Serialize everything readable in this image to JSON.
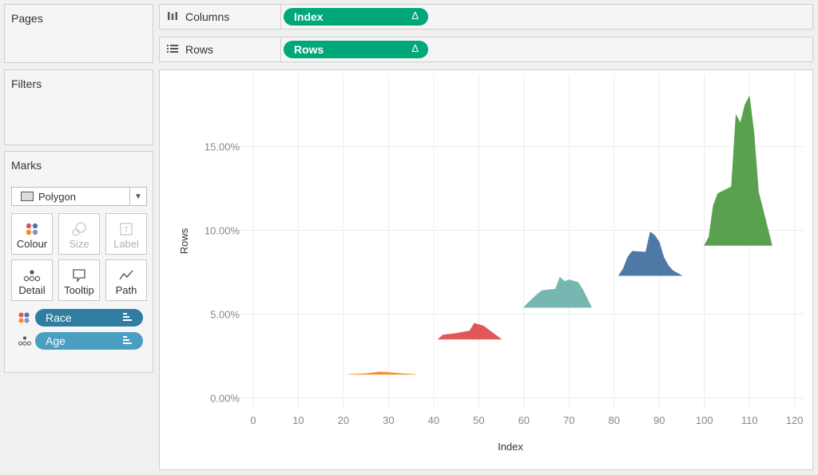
{
  "cards": {
    "pages_title": "Pages",
    "filters_title": "Filters",
    "marks_title": "Marks"
  },
  "shelves": {
    "columns": {
      "label": "Columns",
      "pill": "Index",
      "pill_icon": "delta-icon"
    },
    "rows": {
      "label": "Rows",
      "pill": "Rows",
      "pill_icon": "delta-icon"
    }
  },
  "marks": {
    "mark_type": "Polygon",
    "buttons": [
      {
        "label": "Colour",
        "icon": "colour-icon",
        "enabled": true
      },
      {
        "label": "Size",
        "icon": "size-icon",
        "enabled": false
      },
      {
        "label": "Label",
        "icon": "label-icon",
        "enabled": false
      },
      {
        "label": "Detail",
        "icon": "detail-icon",
        "enabled": true
      },
      {
        "label": "Tooltip",
        "icon": "tooltip-icon",
        "enabled": true
      },
      {
        "label": "Path",
        "icon": "path-icon",
        "enabled": true
      }
    ],
    "fields": [
      {
        "label": "Race",
        "role": "colour",
        "color": "#2f7ea1"
      },
      {
        "label": "Age",
        "role": "detail",
        "color": "#4a9ec2"
      }
    ]
  },
  "chart_data": {
    "type": "area",
    "xlabel": "Index",
    "ylabel": "Rows",
    "xlim": [
      -3,
      122
    ],
    "ylim": [
      -0.6,
      18.6
    ],
    "x_ticks": [
      "0",
      "10",
      "20",
      "30",
      "40",
      "50",
      "60",
      "70",
      "80",
      "90",
      "100",
      "110",
      "120"
    ],
    "y_ticks": [
      "0.00%",
      "5.00%",
      "10.00%",
      "15.00%"
    ],
    "grid": true,
    "series": [
      {
        "color": "#f28e2b",
        "baseline": 1.4,
        "points": [
          [
            21,
            1.4
          ],
          [
            25,
            1.45
          ],
          [
            28,
            1.55
          ],
          [
            30,
            1.52
          ],
          [
            33,
            1.45
          ],
          [
            36,
            1.4
          ]
        ]
      },
      {
        "color": "#e15759",
        "baseline": 3.5,
        "points": [
          [
            41,
            3.5
          ],
          [
            42,
            3.75
          ],
          [
            45,
            3.85
          ],
          [
            48,
            4.0
          ],
          [
            49,
            4.45
          ],
          [
            51,
            4.3
          ],
          [
            53,
            3.9
          ],
          [
            55,
            3.5
          ]
        ]
      },
      {
        "color": "#76b7b2",
        "baseline": 5.4,
        "points": [
          [
            60,
            5.4
          ],
          [
            61,
            5.7
          ],
          [
            63,
            6.2
          ],
          [
            64,
            6.4
          ],
          [
            67,
            6.5
          ],
          [
            68,
            7.2
          ],
          [
            69,
            6.95
          ],
          [
            70,
            7.05
          ],
          [
            72,
            6.9
          ],
          [
            73,
            6.5
          ],
          [
            75,
            5.4
          ]
        ]
      },
      {
        "color": "#4e79a7",
        "baseline": 7.3,
        "points": [
          [
            81,
            7.3
          ],
          [
            82,
            7.7
          ],
          [
            83,
            8.4
          ],
          [
            84,
            8.75
          ],
          [
            87,
            8.7
          ],
          [
            88,
            9.9
          ],
          [
            89,
            9.7
          ],
          [
            90,
            9.3
          ],
          [
            91,
            8.4
          ],
          [
            92,
            7.9
          ],
          [
            93,
            7.6
          ],
          [
            95,
            7.3
          ]
        ]
      },
      {
        "color": "#59a14f",
        "baseline": 9.1,
        "points": [
          [
            100,
            9.1
          ],
          [
            101,
            9.6
          ],
          [
            102,
            11.5
          ],
          [
            103,
            12.2
          ],
          [
            106,
            12.6
          ],
          [
            107,
            16.9
          ],
          [
            108,
            16.4
          ],
          [
            109,
            17.5
          ],
          [
            110,
            18.0
          ],
          [
            111,
            15.8
          ],
          [
            112,
            12.3
          ],
          [
            115,
            9.1
          ]
        ]
      }
    ]
  }
}
